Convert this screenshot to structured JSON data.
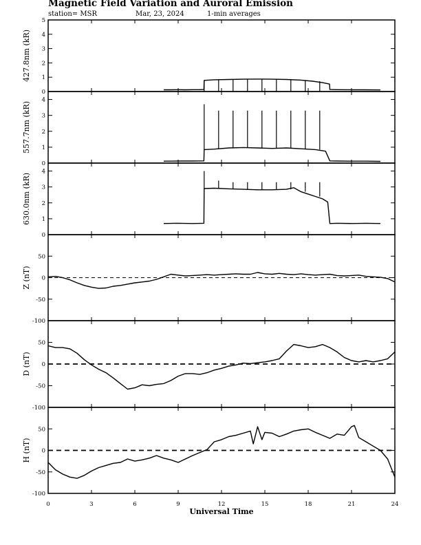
{
  "header": {
    "title": "Magnetic Field Variation and Auroral Emission",
    "station": "station= MSR",
    "date": "Mar, 23, 2024",
    "averaging": "1-min averages"
  },
  "colors": {
    "line": "#000000",
    "background": "#ffffff"
  },
  "chart_data": [
    {
      "type": "line",
      "ylabel": "427.8nm (kR)",
      "ylim": [
        0,
        5
      ],
      "yticks": [
        0,
        1,
        2,
        3,
        4,
        5
      ],
      "series": [
        {
          "x": [
            8,
            8.5,
            9,
            9.5,
            10,
            10.5,
            10.78,
            10.8,
            11.5,
            12.5,
            13.5,
            14.5,
            15.5,
            16.5,
            17.5,
            18.3,
            19.0,
            19.48,
            19.5,
            20,
            21,
            22,
            23
          ],
          "y": [
            0.12,
            0.12,
            0.13,
            0.12,
            0.13,
            0.13,
            0.14,
            0.78,
            0.82,
            0.84,
            0.86,
            0.87,
            0.86,
            0.84,
            0.8,
            0.72,
            0.62,
            0.52,
            0.14,
            0.13,
            0.12,
            0.12,
            0.11
          ]
        }
      ],
      "spikes": {
        "x": [
          10.8,
          11.8,
          12.8,
          13.8,
          14.8,
          15.8,
          16.8,
          17.8,
          18.8
        ],
        "y": [
          0.0,
          0.0,
          0.0,
          0.0,
          0.0,
          0.0,
          0.0,
          0.0,
          0.0
        ]
      }
    },
    {
      "type": "line",
      "ylabel": "557.7nm (kR)",
      "ylim": [
        0,
        4.5
      ],
      "yticks": [
        0,
        1,
        2,
        3,
        4
      ],
      "series": [
        {
          "x": [
            8,
            9,
            10,
            10.78,
            10.8,
            11.5,
            12.5,
            13.5,
            14.5,
            15.5,
            16.5,
            17.5,
            18.5,
            19.2,
            19.5,
            20,
            21,
            22,
            23
          ],
          "y": [
            0.12,
            0.13,
            0.13,
            0.14,
            0.85,
            0.88,
            0.95,
            0.98,
            0.95,
            0.92,
            0.95,
            0.9,
            0.85,
            0.75,
            0.14,
            0.13,
            0.12,
            0.12,
            0.11
          ]
        }
      ],
      "spikes": {
        "x": [
          10.8,
          11.8,
          12.8,
          13.8,
          14.8,
          15.8,
          16.8,
          17.8,
          18.8
        ],
        "y": [
          3.7,
          3.3,
          3.3,
          3.3,
          3.3,
          3.3,
          3.3,
          3.3,
          3.3
        ]
      }
    },
    {
      "type": "line",
      "ylabel": "630.0nm (kR)",
      "ylim": [
        0,
        4.5
      ],
      "yticks": [
        0,
        1,
        2,
        3,
        4
      ],
      "series": [
        {
          "x": [
            8,
            9,
            10,
            10.78,
            10.8,
            11.5,
            12.5,
            13.5,
            14.5,
            15.5,
            16.5,
            17.0,
            17.5,
            18.0,
            18.5,
            19.0,
            19.35,
            19.5,
            20,
            21,
            22,
            23
          ],
          "y": [
            0.7,
            0.72,
            0.7,
            0.72,
            2.9,
            2.92,
            2.88,
            2.85,
            2.82,
            2.82,
            2.85,
            2.95,
            2.7,
            2.55,
            2.4,
            2.25,
            2.05,
            0.7,
            0.72,
            0.7,
            0.72,
            0.7
          ]
        }
      ],
      "spikes": {
        "x": [
          10.8,
          11.8,
          12.8,
          13.8,
          14.8,
          15.8,
          16.8,
          17.8,
          18.8
        ],
        "y": [
          4.0,
          3.4,
          3.3,
          3.3,
          3.3,
          3.3,
          3.3,
          3.3,
          3.3
        ]
      }
    },
    {
      "type": "line",
      "ylabel": "Z (nT)",
      "ylim": [
        -100,
        100
      ],
      "yticks": [
        -100,
        -50,
        0,
        50
      ],
      "zero_line": "dashed",
      "series": [
        {
          "x": [
            0,
            0.5,
            1,
            1.5,
            2,
            2.5,
            3,
            3.5,
            4,
            4.5,
            5,
            5.5,
            6,
            6.5,
            7,
            7.5,
            8,
            8.5,
            9,
            9.5,
            10,
            10.5,
            11,
            11.5,
            12,
            12.5,
            13,
            13.5,
            14,
            14.5,
            15,
            15.5,
            16,
            16.5,
            17,
            17.5,
            18,
            18.5,
            19,
            19.5,
            20,
            20.5,
            21,
            21.5,
            22,
            22.5,
            23,
            23.5,
            24
          ],
          "y": [
            2,
            3,
            0,
            -5,
            -12,
            -18,
            -22,
            -25,
            -24,
            -20,
            -18,
            -15,
            -12,
            -10,
            -8,
            -4,
            2,
            8,
            6,
            4,
            5,
            6,
            7,
            6,
            7,
            8,
            9,
            8,
            8,
            12,
            9,
            8,
            10,
            8,
            7,
            9,
            7,
            6,
            7,
            8,
            5,
            4,
            5,
            6,
            3,
            2,
            1,
            -2,
            -10
          ]
        }
      ]
    },
    {
      "type": "line",
      "ylabel": "D (nT)",
      "ylim": [
        -100,
        100
      ],
      "yticks": [
        -100,
        -50,
        0,
        50
      ],
      "zero_line": "dashed",
      "series": [
        {
          "x": [
            0,
            0.5,
            1,
            1.5,
            2,
            2.5,
            3,
            3.5,
            4,
            4.5,
            5,
            5.5,
            6,
            6.5,
            7,
            7.5,
            8,
            8.5,
            9,
            9.5,
            10,
            10.5,
            11,
            11.5,
            12,
            12.5,
            13,
            13.5,
            14,
            14.5,
            15,
            15.5,
            16,
            16.5,
            17,
            17.5,
            18,
            18.5,
            19,
            19.5,
            20,
            20.5,
            21,
            21.5,
            22,
            22.5,
            23,
            23.5,
            24
          ],
          "y": [
            42,
            38,
            38,
            35,
            25,
            10,
            -2,
            -12,
            -20,
            -32,
            -45,
            -58,
            -55,
            -48,
            -50,
            -47,
            -45,
            -38,
            -28,
            -22,
            -22,
            -24,
            -20,
            -14,
            -10,
            -5,
            -2,
            2,
            1,
            3,
            5,
            8,
            12,
            30,
            45,
            42,
            38,
            40,
            45,
            38,
            28,
            15,
            8,
            5,
            8,
            5,
            8,
            12,
            28
          ]
        }
      ]
    },
    {
      "type": "line",
      "ylabel": "H (nT)",
      "ylim": [
        -100,
        100
      ],
      "yticks": [
        -100,
        -50,
        0,
        50
      ],
      "zero_line": "dashed",
      "series": [
        {
          "x": [
            0,
            0.5,
            1,
            1.5,
            2,
            2.5,
            3,
            3.5,
            4,
            4.5,
            5,
            5.5,
            6,
            6.5,
            7,
            7.5,
            8,
            8.5,
            9,
            9.5,
            10,
            10.5,
            11,
            11.5,
            12,
            12.5,
            13,
            13.5,
            14,
            14.2,
            14.5,
            14.8,
            15,
            15.5,
            16,
            16.5,
            17,
            17.5,
            18,
            18.5,
            19,
            19.5,
            20,
            20.5,
            21,
            21.2,
            21.5,
            22,
            22.5,
            23,
            23.5,
            24
          ],
          "y": [
            -28,
            -45,
            -55,
            -62,
            -65,
            -58,
            -48,
            -40,
            -35,
            -30,
            -28,
            -20,
            -25,
            -22,
            -18,
            -12,
            -18,
            -22,
            -28,
            -20,
            -12,
            -5,
            2,
            20,
            25,
            32,
            35,
            40,
            45,
            15,
            55,
            25,
            42,
            40,
            32,
            38,
            45,
            48,
            50,
            42,
            35,
            28,
            38,
            35,
            55,
            58,
            30,
            20,
            10,
            0,
            -20,
            -62
          ]
        }
      ]
    }
  ],
  "x_axis": {
    "label": "Universal Time",
    "ticks": [
      0,
      3,
      6,
      9,
      12,
      15,
      18,
      21,
      24
    ],
    "range": [
      0,
      24
    ]
  }
}
